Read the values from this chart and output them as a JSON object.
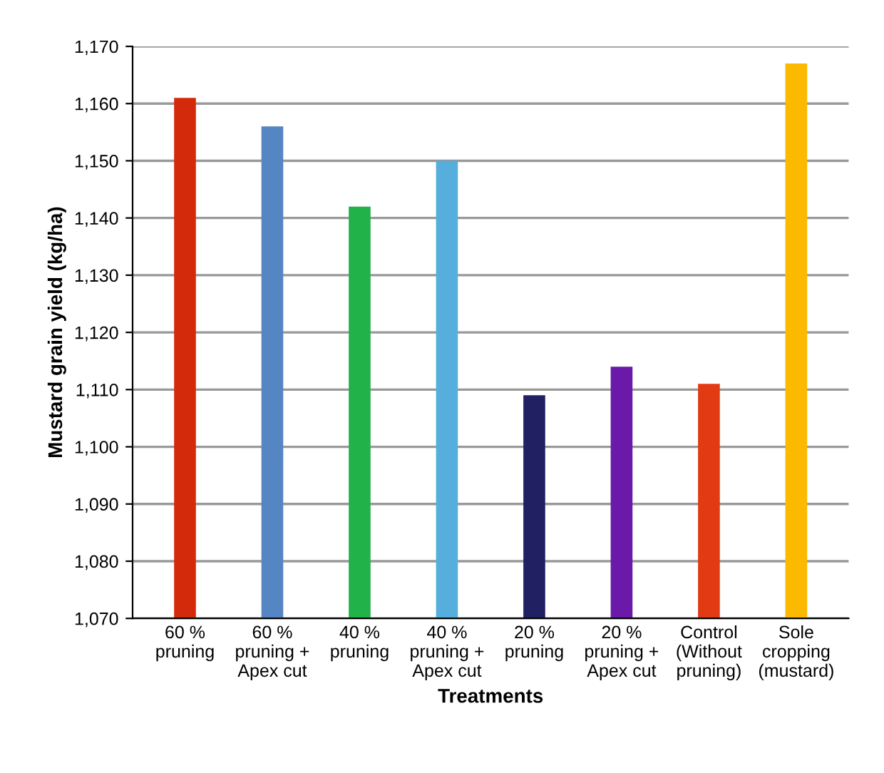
{
  "chart_data": {
    "type": "bar",
    "xlabel": "Treatments",
    "ylabel": "Mustard grain yield (kg/ha)",
    "categories": [
      "60 %\npruning",
      "60 %\npruning +\nApex cut",
      "40 %\npruning",
      "40 %\npruning +\nApex cut",
      "20 %\npruning",
      "20 %\npruning +\nApex cut",
      "Control\n(Without\npruning)",
      "Sole\ncropping\n(mustard)"
    ],
    "values": [
      1161,
      1156,
      1142,
      1150,
      1109,
      1114,
      1111,
      1167
    ],
    "colors": [
      "#d42a0c",
      "#5585c2",
      "#22b24a",
      "#55aedc",
      "#212063",
      "#6a19a8",
      "#e23a12",
      "#fbb900"
    ],
    "ylim": [
      1070,
      1170
    ],
    "yticks": [
      {
        "value": 1070,
        "label": "1,070"
      },
      {
        "value": 1080,
        "label": "1,080"
      },
      {
        "value": 1090,
        "label": "1,090"
      },
      {
        "value": 1100,
        "label": "1,100"
      },
      {
        "value": 1110,
        "label": "1,110"
      },
      {
        "value": 1120,
        "label": "1,120"
      },
      {
        "value": 1130,
        "label": "1,130"
      },
      {
        "value": 1140,
        "label": "1,140"
      },
      {
        "value": 1150,
        "label": "1,150"
      },
      {
        "value": 1160,
        "label": "1,160"
      },
      {
        "value": 1170,
        "label": "1,170"
      }
    ],
    "grid": "y",
    "legend": false
  }
}
